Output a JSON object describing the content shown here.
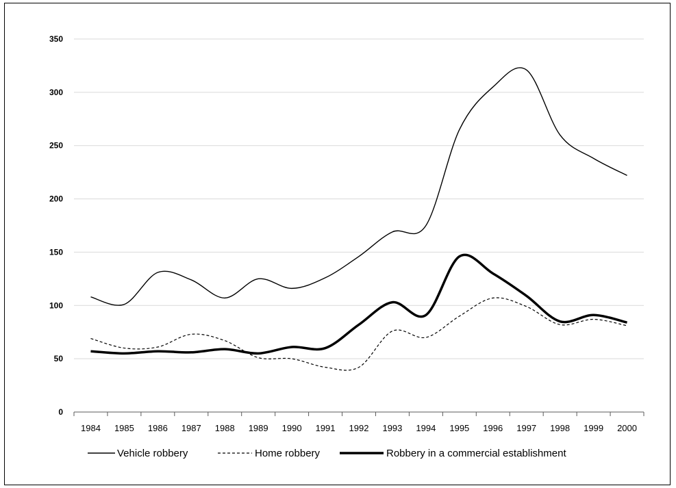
{
  "chart_data": {
    "type": "line",
    "title": "",
    "xlabel": "",
    "ylabel": "",
    "categories": [
      "1984",
      "1985",
      "1986",
      "1987",
      "1988",
      "1989",
      "1990",
      "1991",
      "1992",
      "1993",
      "1994",
      "1995",
      "1996",
      "1997",
      "1998",
      "1999",
      "2000"
    ],
    "ylim": [
      0,
      350
    ],
    "yticks": [
      0,
      50,
      100,
      150,
      200,
      250,
      300,
      350
    ],
    "grid": true,
    "legend_position": "bottom",
    "series": [
      {
        "name": "Vehicle robbery",
        "style": "thin-solid",
        "color": "#000000",
        "values": [
          108,
          101,
          131,
          124,
          107,
          125,
          116,
          126,
          146,
          169,
          175,
          265,
          305,
          321,
          260,
          238,
          222
        ]
      },
      {
        "name": "Home robbery",
        "style": "dashed",
        "color": "#000000",
        "values": [
          69,
          60,
          61,
          73,
          67,
          51,
          50,
          42,
          42,
          76,
          70,
          90,
          107,
          99,
          82,
          87,
          81
        ]
      },
      {
        "name": "Robbery in a commercial establishment",
        "style": "thick-solid",
        "color": "#000000",
        "values": [
          57,
          55,
          57,
          56,
          59,
          55,
          61,
          60,
          82,
          103,
          91,
          146,
          130,
          109,
          85,
          91,
          84
        ]
      }
    ]
  }
}
